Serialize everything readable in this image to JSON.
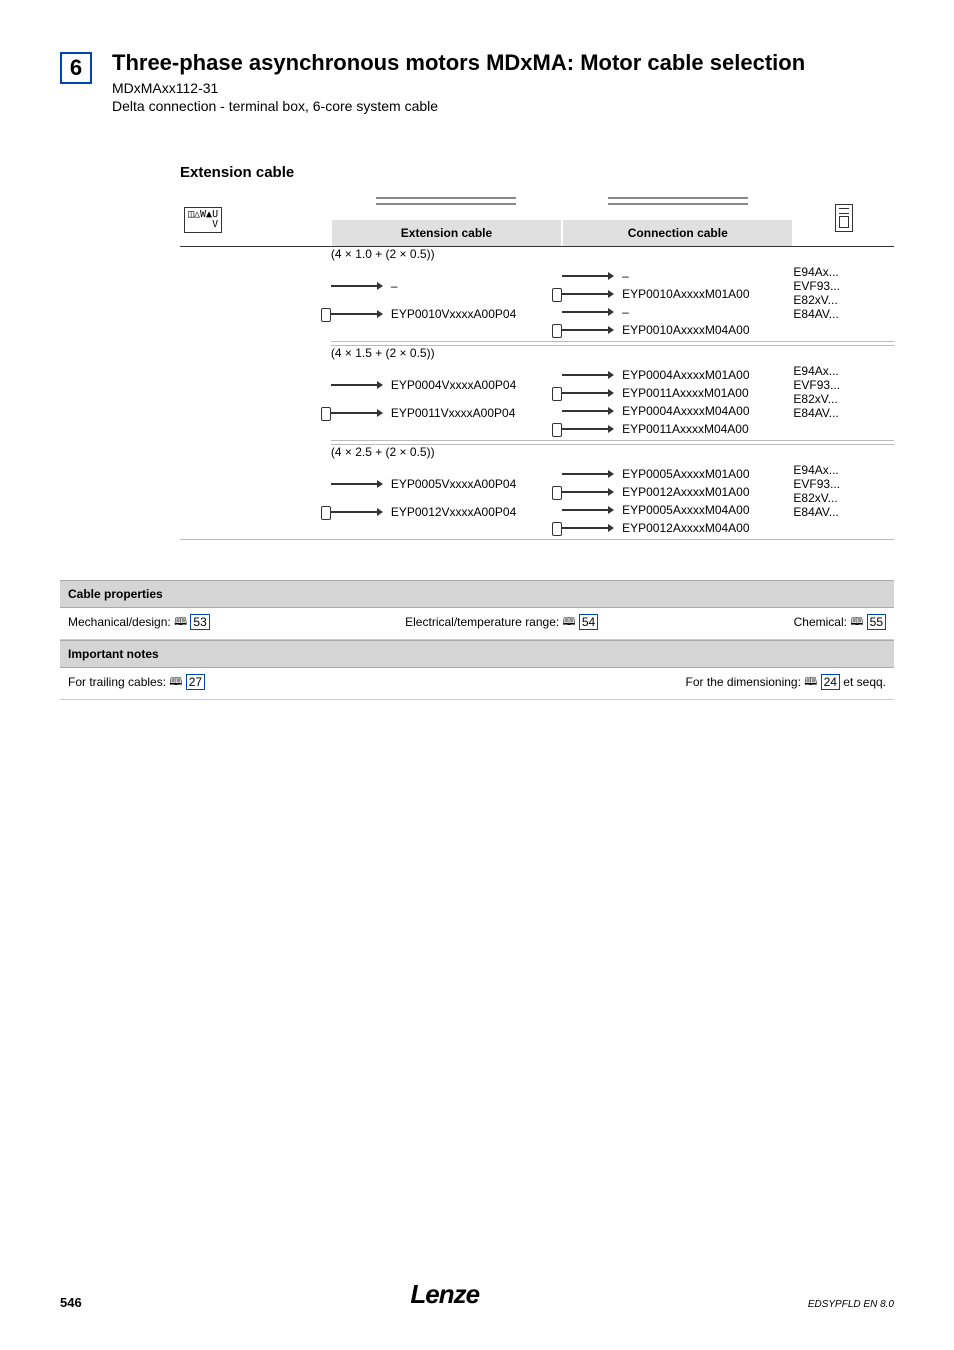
{
  "header": {
    "chapter": "6",
    "title": "Three-phase asynchronous motors MDxMA: Motor cable selection",
    "subtitle1": "MDxMAxx112-31",
    "subtitle2": "Delta connection - terminal box, 6-core system cable"
  },
  "section_heading": "Extension cable",
  "table_headers": {
    "extension": "Extension cable",
    "connection": "Connection cable"
  },
  "groups": [
    {
      "spec": "(4 × 1.0 + (2 × 0.5))",
      "ext_rows": [
        {
          "style": "plain",
          "label": "–"
        },
        {
          "style": "plug",
          "label": "EYP0010VxxxxA00P04"
        }
      ],
      "conn_rows": [
        {
          "style": "plain",
          "label": "–"
        },
        {
          "style": "plug",
          "label": "EYP0010AxxxxM01A00"
        },
        {
          "style": "plain",
          "label": "–"
        },
        {
          "style": "plug",
          "label": "EYP0010AxxxxM04A00"
        }
      ],
      "devices": "E94Ax...\nEVF93...\nE82xV...\nE84AV..."
    },
    {
      "spec": "(4 × 1.5 + (2 × 0.5))",
      "ext_rows": [
        {
          "style": "plain",
          "label": "EYP0004VxxxxA00P04"
        },
        {
          "style": "plug",
          "label": "EYP0011VxxxxA00P04"
        }
      ],
      "conn_rows": [
        {
          "style": "plain",
          "label": "EYP0004AxxxxM01A00"
        },
        {
          "style": "plug",
          "label": "EYP0011AxxxxM01A00"
        },
        {
          "style": "plain",
          "label": "EYP0004AxxxxM04A00"
        },
        {
          "style": "plug",
          "label": "EYP0011AxxxxM04A00"
        }
      ],
      "devices": "E94Ax...\nEVF93...\nE82xV...\nE84AV..."
    },
    {
      "spec": "(4 × 2.5 + (2 × 0.5))",
      "ext_rows": [
        {
          "style": "plain",
          "label": "EYP0005VxxxxA00P04"
        },
        {
          "style": "plug",
          "label": "EYP0012VxxxxA00P04"
        }
      ],
      "conn_rows": [
        {
          "style": "plain",
          "label": "EYP0005AxxxxM01A00"
        },
        {
          "style": "plug",
          "label": "EYP0012AxxxxM01A00"
        },
        {
          "style": "plain",
          "label": "EYP0005AxxxxM04A00"
        },
        {
          "style": "plug",
          "label": "EYP0012AxxxxM04A00"
        }
      ],
      "devices": "E94Ax...\nEVF93...\nE82xV...\nE84AV..."
    }
  ],
  "footer_sections": [
    {
      "heading": "Cable properties",
      "items": [
        {
          "text_prefix": "Mechanical/design: ",
          "page": "53"
        },
        {
          "text_prefix": "Electrical/temperature range: ",
          "page": "54"
        },
        {
          "text_prefix": "Chemical: ",
          "page": "55"
        }
      ]
    },
    {
      "heading": "Important notes",
      "items": [
        {
          "text_prefix": "For trailing cables: ",
          "page": "27"
        },
        {
          "text_prefix": "For the dimensioning: ",
          "page": "24",
          "suffix": " et seqq."
        }
      ]
    }
  ],
  "page_footer": {
    "page_num": "546",
    "brand": "Lenze",
    "doc_code": "EDSYPFLD EN 8.0"
  }
}
